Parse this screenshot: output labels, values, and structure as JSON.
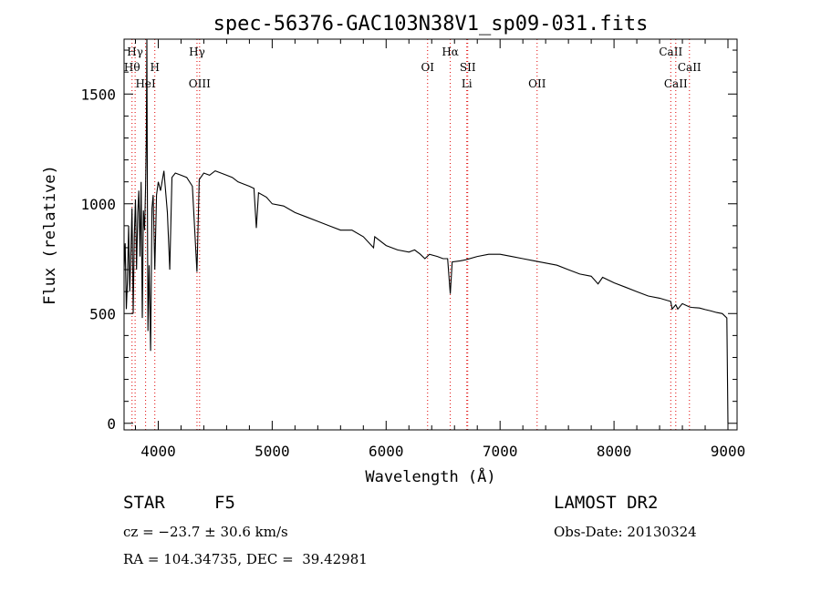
{
  "chart_data": {
    "type": "line",
    "title": "spec-56376-GAC103N38V1_sp09-031.fits",
    "xlabel": "Wavelength (Å)",
    "ylabel": "Flux (relative)",
    "xlim": [
      3700,
      9080
    ],
    "ylim": [
      -30,
      1750
    ],
    "xticks": [
      4000,
      5000,
      6000,
      7000,
      8000,
      9000
    ],
    "yticks": [
      0,
      500,
      1000,
      1500
    ],
    "grid": false,
    "line_color": "#000000",
    "marker_color": "#e00000",
    "lines": [
      {
        "label": "Hγ",
        "x": 3797,
        "row": 0
      },
      {
        "label": "Hθ",
        "x": 3770,
        "row": 1
      },
      {
        "label": "H",
        "x": 3970,
        "row": 1
      },
      {
        "label": "HeI",
        "x": 3889,
        "row": 2
      },
      {
        "label": "Hγ",
        "x": 4340,
        "row": 0
      },
      {
        "label": "OIII",
        "x": 4363,
        "row": 2
      },
      {
        "label": "Hα",
        "x": 6563,
        "row": 0
      },
      {
        "label": "OI",
        "x": 6364,
        "row": 1
      },
      {
        "label": "SII",
        "x": 6716,
        "row": 1
      },
      {
        "label": "Li",
        "x": 6708,
        "row": 2
      },
      {
        "label": "OII",
        "x": 7325,
        "row": 2
      },
      {
        "label": "CaII",
        "x": 8498,
        "row": 0
      },
      {
        "label": "CaII",
        "x": 8662,
        "row": 1
      },
      {
        "label": "CaII",
        "x": 8542,
        "row": 2
      }
    ],
    "series": [
      {
        "x": [
          3700,
          3710,
          3720,
          3730,
          3740,
          3750,
          3760,
          3770,
          3780,
          3790,
          3800,
          3810,
          3820,
          3830,
          3840,
          3850,
          3860,
          3870,
          3880,
          3889,
          3895,
          3900,
          3905,
          3910,
          3920,
          3933,
          3945,
          3955,
          3970,
          3985,
          4000,
          4020,
          4050,
          4080,
          4101,
          4120,
          4150,
          4200,
          4250,
          4300,
          4340,
          4360,
          4400,
          4450,
          4500,
          4550,
          4600,
          4650,
          4700,
          4750,
          4800,
          4840,
          4861,
          4880,
          4950,
          5000,
          5100,
          5200,
          5300,
          5400,
          5500,
          5600,
          5700,
          5800,
          5890,
          5900,
          6000,
          6100,
          6200,
          6250,
          6300,
          6340,
          6380,
          6450,
          6500,
          6540,
          6563,
          6580,
          6650,
          6700,
          6800,
          6900,
          7000,
          7100,
          7200,
          7300,
          7400,
          7500,
          7600,
          7700,
          7800,
          7860,
          7900,
          8000,
          8100,
          8200,
          8300,
          8400,
          8498,
          8510,
          8542,
          8560,
          8600,
          8662,
          8680,
          8750,
          8800,
          8850,
          8900,
          8950,
          8990,
          9000
        ],
        "y": [
          700,
          820,
          520,
          650,
          900,
          600,
          780,
          980,
          500,
          850,
          1020,
          700,
          960,
          1060,
          760,
          1100,
          480,
          970,
          880,
          1080,
          1300,
          1750,
          1000,
          420,
          720,
          330,
          980,
          1040,
          700,
          1040,
          1100,
          1060,
          1150,
          960,
          700,
          1120,
          1140,
          1130,
          1120,
          1080,
          690,
          1110,
          1140,
          1130,
          1150,
          1140,
          1130,
          1120,
          1100,
          1090,
          1080,
          1070,
          890,
          1050,
          1030,
          1000,
          990,
          960,
          940,
          920,
          900,
          880,
          880,
          850,
          800,
          850,
          810,
          790,
          780,
          790,
          770,
          750,
          770,
          760,
          750,
          750,
          590,
          735,
          740,
          745,
          760,
          770,
          770,
          760,
          750,
          740,
          730,
          720,
          700,
          680,
          670,
          635,
          665,
          640,
          620,
          600,
          580,
          570,
          555,
          520,
          540,
          520,
          545,
          530,
          528,
          525,
          518,
          512,
          505,
          500,
          480,
          0
        ]
      }
    ]
  },
  "info": {
    "class_label": "STAR",
    "subclass": "F5",
    "survey": "LAMOST DR2",
    "cz": "cz = −23.7 ± 30.6 km/s",
    "obs_date": "Obs-Date: 20130324",
    "coords": "RA = 104.34735, DEC =  39.42981"
  }
}
